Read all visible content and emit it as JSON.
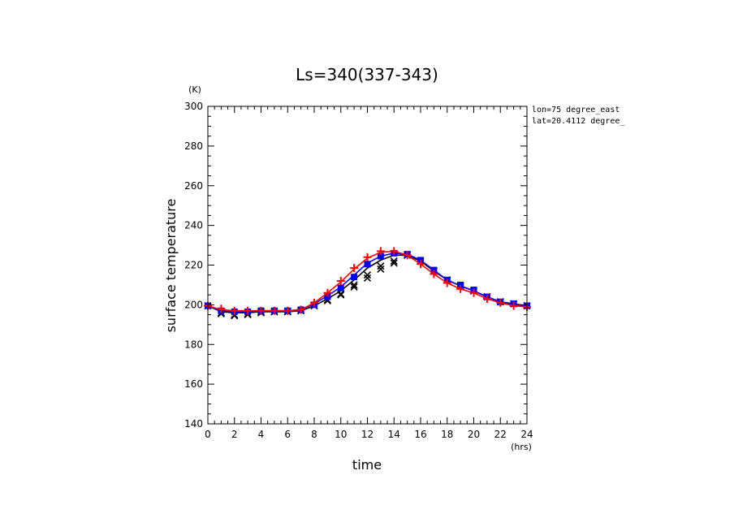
{
  "chart_data": {
    "type": "line",
    "title": "Ls=340(337-343)",
    "xlabel": "time",
    "ylabel": "surface temperature",
    "x_unit": "(hrs)",
    "y_unit": "(K)",
    "xlim": [
      0,
      24
    ],
    "ylim": [
      140,
      300
    ],
    "x_ticks": [
      0,
      2,
      4,
      6,
      8,
      10,
      12,
      14,
      16,
      18,
      20,
      22,
      24
    ],
    "y_ticks": [
      140,
      160,
      180,
      200,
      220,
      240,
      260,
      280,
      300
    ],
    "grid": false,
    "annotations": [
      "lon=75 degree_east",
      "lat=20.4112 degree_"
    ],
    "x_curve": [
      0,
      1,
      2,
      3,
      4,
      5,
      6,
      7,
      8,
      9,
      10,
      11,
      12,
      13,
      14,
      15,
      16,
      17,
      18,
      19,
      20,
      21,
      22,
      23,
      24
    ],
    "x_markers": [
      0,
      1,
      2,
      3,
      4,
      5,
      6,
      7,
      8,
      9,
      10,
      11,
      12,
      13,
      14,
      15,
      16,
      17,
      18,
      19,
      20,
      21,
      22,
      23,
      24
    ],
    "series": [
      {
        "color": "#000000",
        "curve": [
          199.5,
          196.5,
          196,
          196,
          196.5,
          196.5,
          196.5,
          197,
          199.5,
          203,
          207,
          212.5,
          218.5,
          222.5,
          225,
          225,
          222,
          217,
          212.5,
          209.5,
          207,
          204,
          201.5,
          200.5,
          199.5
        ],
        "markers": [
          199.5,
          196,
          195,
          195.5,
          196.5,
          196.5,
          196.5,
          197,
          199.5,
          202.5,
          205.5,
          210,
          215,
          219.5,
          222,
          225,
          222,
          217,
          212.5,
          209.5,
          207,
          204,
          201.5,
          200.5,
          199.5
        ],
        "markers_b": [
          199.5,
          195.5,
          194.5,
          195,
          196,
          196.5,
          196.5,
          197,
          199.5,
          202,
          205,
          209,
          213.5,
          218,
          221,
          225,
          222,
          217,
          212.5,
          209.5,
          207,
          204,
          201.5,
          200.5,
          199.5
        ]
      },
      {
        "color": "#0000ff",
        "curve": [
          199.5,
          197,
          196.5,
          196.5,
          197,
          197,
          197,
          197.5,
          200.5,
          204.5,
          209,
          215,
          221,
          224.5,
          226,
          225.5,
          222.5,
          217.5,
          212.5,
          209.5,
          207,
          204,
          201.5,
          200,
          199.5
        ],
        "markers": [
          199.5,
          197,
          196.5,
          196.5,
          197,
          197,
          197,
          197.5,
          200,
          204,
          208.5,
          214,
          220.5,
          224.5,
          226,
          225.5,
          222.5,
          217.5,
          212.5,
          210,
          207.5,
          204,
          201.5,
          200.5,
          199.5
        ]
      },
      {
        "color": "#ff0000",
        "curve": [
          199.5,
          197.5,
          197,
          197,
          197,
          197,
          197,
          197.5,
          201,
          206,
          211.5,
          218,
          223.5,
          226.5,
          227,
          225,
          220.5,
          215.5,
          211,
          208,
          206,
          203,
          201,
          199.5,
          199
        ],
        "markers": [
          199.5,
          198,
          197,
          197,
          197,
          197,
          197,
          197.5,
          201,
          206,
          212,
          218.5,
          224,
          227,
          227,
          225,
          220.5,
          215.5,
          211,
          208,
          206,
          203,
          201,
          199.5,
          199
        ]
      }
    ]
  }
}
